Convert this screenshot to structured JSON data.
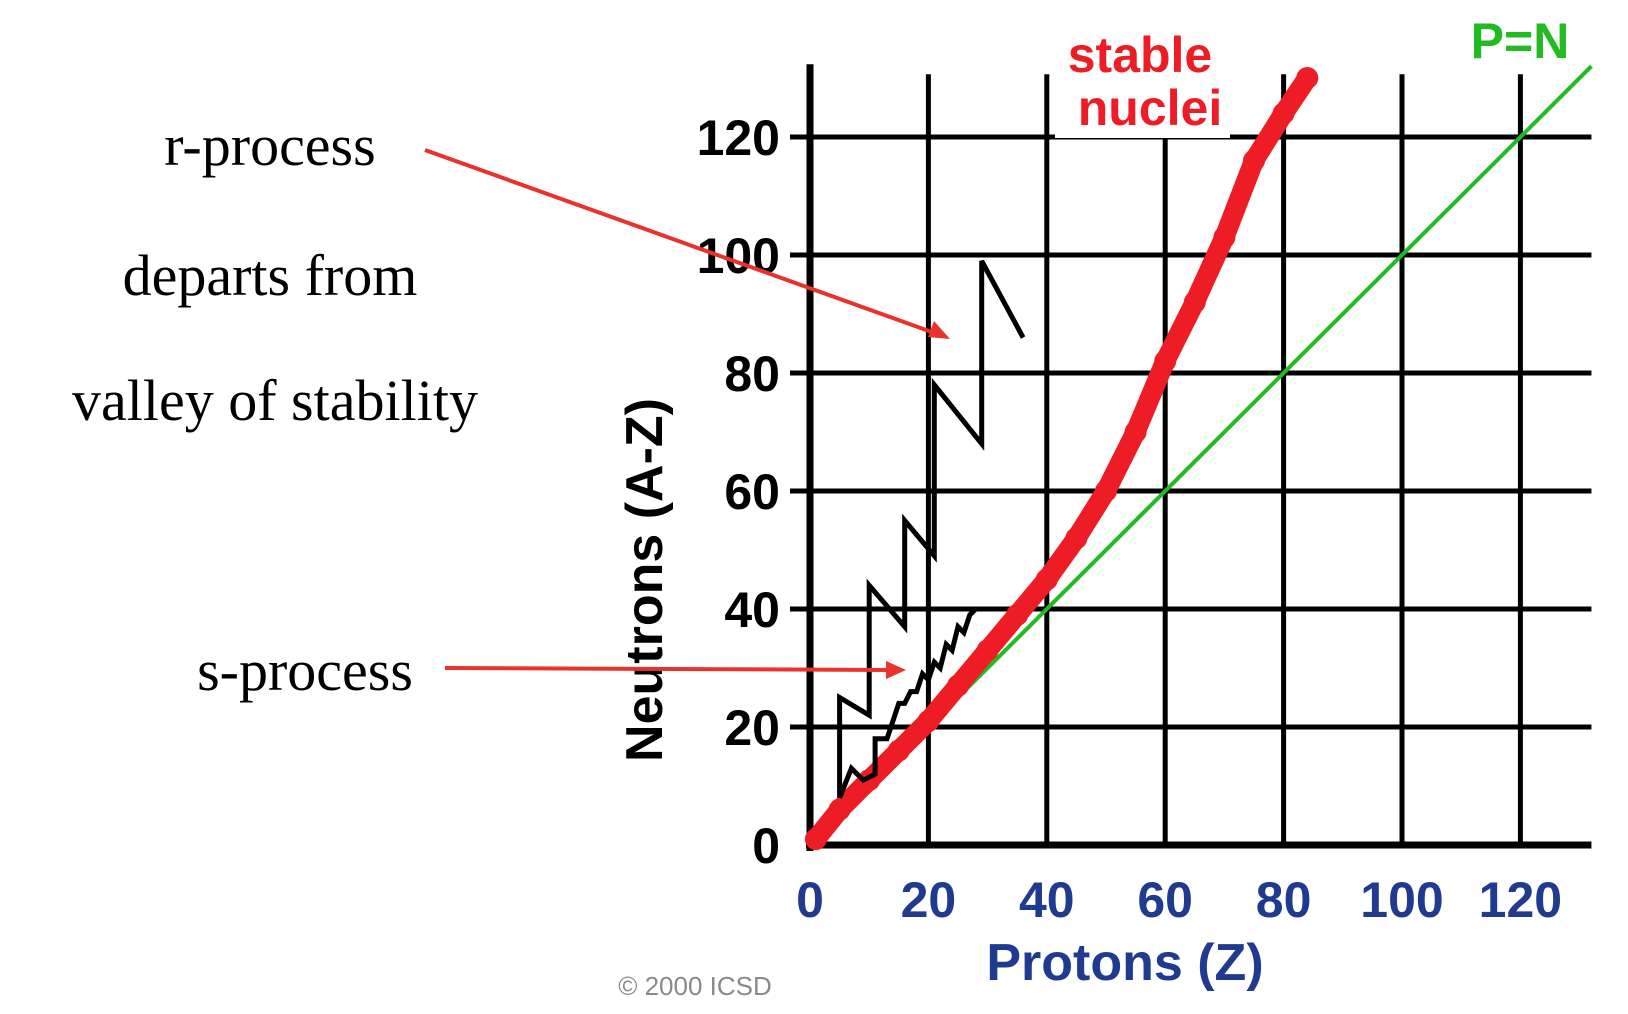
{
  "chart_data": {
    "type": "scatter",
    "title": "",
    "xlabel": "Protons  (Z)",
    "ylabel": "Neutrons  (A-Z)",
    "xlim": [
      0,
      132
    ],
    "ylim": [
      0,
      132
    ],
    "grid": true,
    "x_ticks": [
      "0",
      "20",
      "40",
      "60",
      "80",
      "100",
      "120"
    ],
    "y_ticks": [
      "0",
      "20",
      "40",
      "60",
      "80",
      "100",
      "120"
    ],
    "copyright": "© 2000 ICSD",
    "colors": {
      "stable": "#ee1c24",
      "pn_line": "#22bb22",
      "axis_text": "#1f3a8f",
      "process": "#000000",
      "arrow": "#e8322b"
    },
    "series": [
      {
        "name": "stable nuclei",
        "kind": "band",
        "points": [
          [
            1,
            1
          ],
          [
            5,
            6
          ],
          [
            10,
            11
          ],
          [
            15,
            16
          ],
          [
            20,
            21
          ],
          [
            25,
            27
          ],
          [
            30,
            33
          ],
          [
            35,
            39
          ],
          [
            40,
            45
          ],
          [
            45,
            52
          ],
          [
            50,
            60
          ],
          [
            55,
            70
          ],
          [
            60,
            82
          ],
          [
            65,
            92
          ],
          [
            70,
            103
          ],
          [
            75,
            116
          ],
          [
            80,
            124
          ],
          [
            84,
            130
          ]
        ]
      },
      {
        "name": "P=N",
        "kind": "line",
        "points": [
          [
            0,
            0
          ],
          [
            132,
            132
          ]
        ]
      },
      {
        "name": "r-process",
        "kind": "path",
        "points": [
          [
            5,
            8
          ],
          [
            5,
            25
          ],
          [
            10,
            22
          ],
          [
            10,
            44
          ],
          [
            16,
            37
          ],
          [
            16,
            55
          ],
          [
            21,
            49
          ],
          [
            21,
            78
          ],
          [
            29,
            68
          ],
          [
            29,
            99
          ],
          [
            36,
            86
          ]
        ]
      },
      {
        "name": "s-process",
        "kind": "path",
        "points": [
          [
            5,
            8
          ],
          [
            7,
            13
          ],
          [
            9,
            11
          ],
          [
            11,
            12
          ],
          [
            11,
            18
          ],
          [
            12,
            18
          ],
          [
            13,
            18
          ],
          [
            14,
            21
          ],
          [
            15,
            24
          ],
          [
            16,
            24
          ],
          [
            17,
            26
          ],
          [
            18,
            26
          ],
          [
            19,
            29
          ],
          [
            20,
            28
          ],
          [
            21,
            31
          ],
          [
            22,
            30
          ],
          [
            23,
            34
          ],
          [
            24,
            33
          ],
          [
            25,
            37
          ],
          [
            26,
            36
          ],
          [
            27,
            39
          ],
          [
            28,
            40
          ]
        ]
      }
    ],
    "legend": {
      "stable_label_line1": "stable",
      "stable_label_line2": "nuclei",
      "pn_label": "P=N"
    },
    "annotations": {
      "r_line1": "r-process",
      "r_line2": "departs from",
      "r_line3": "valley of stability",
      "s_label": "s-process"
    }
  }
}
